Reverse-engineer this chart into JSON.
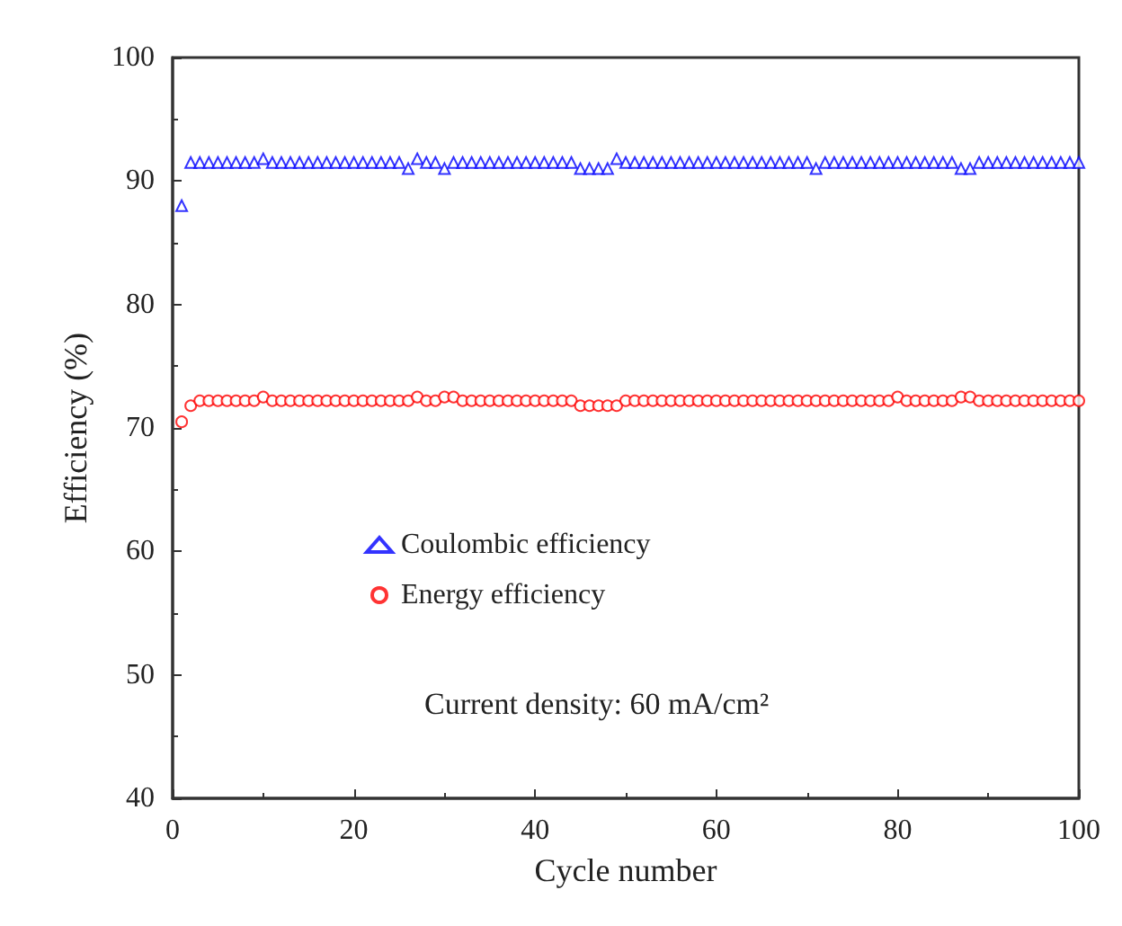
{
  "chart_data": {
    "type": "scatter",
    "xlabel": "Cycle number",
    "ylabel": "Efficiency (%)",
    "x": [
      1,
      2,
      3,
      4,
      5,
      6,
      7,
      8,
      9,
      10,
      11,
      12,
      13,
      14,
      15,
      16,
      17,
      18,
      19,
      20,
      21,
      22,
      23,
      24,
      25,
      26,
      27,
      28,
      29,
      30,
      31,
      32,
      33,
      34,
      35,
      36,
      37,
      38,
      39,
      40,
      41,
      42,
      43,
      44,
      45,
      46,
      47,
      48,
      49,
      50,
      51,
      52,
      53,
      54,
      55,
      56,
      57,
      58,
      59,
      60,
      61,
      62,
      63,
      64,
      65,
      66,
      67,
      68,
      69,
      70,
      71,
      72,
      73,
      74,
      75,
      76,
      77,
      78,
      79,
      80,
      81,
      82,
      83,
      84,
      85,
      86,
      87,
      88,
      89,
      90,
      91,
      92,
      93,
      94,
      95,
      96,
      97,
      98,
      99,
      100
    ],
    "series": [
      {
        "name": "Coulombic efficiency",
        "color": "#0000ff",
        "marker": "triangle",
        "values": [
          88,
          91.5,
          91.5,
          91.5,
          91.5,
          91.5,
          91.5,
          91.5,
          91.5,
          91.8,
          91.5,
          91.5,
          91.5,
          91.5,
          91.5,
          91.5,
          91.5,
          91.5,
          91.5,
          91.5,
          91.5,
          91.5,
          91.5,
          91.5,
          91.5,
          91.0,
          91.8,
          91.5,
          91.5,
          91.0,
          91.5,
          91.5,
          91.5,
          91.5,
          91.5,
          91.5,
          91.5,
          91.5,
          91.5,
          91.5,
          91.5,
          91.5,
          91.5,
          91.5,
          91.0,
          91.0,
          91.0,
          91.0,
          91.8,
          91.5,
          91.5,
          91.5,
          91.5,
          91.5,
          91.5,
          91.5,
          91.5,
          91.5,
          91.5,
          91.5,
          91.5,
          91.5,
          91.5,
          91.5,
          91.5,
          91.5,
          91.5,
          91.5,
          91.5,
          91.5,
          91.0,
          91.5,
          91.5,
          91.5,
          91.5,
          91.5,
          91.5,
          91.5,
          91.5,
          91.5,
          91.5,
          91.5,
          91.5,
          91.5,
          91.5,
          91.5,
          91.0,
          91.0,
          91.5,
          91.5,
          91.5,
          91.5,
          91.5,
          91.5,
          91.5,
          91.5,
          91.5,
          91.5,
          91.5,
          91.5
        ]
      },
      {
        "name": "Energy efficiency",
        "color": "#ff0000",
        "marker": "circle",
        "values": [
          70.5,
          71.8,
          72.2,
          72.2,
          72.2,
          72.2,
          72.2,
          72.2,
          72.2,
          72.5,
          72.2,
          72.2,
          72.2,
          72.2,
          72.2,
          72.2,
          72.2,
          72.2,
          72.2,
          72.2,
          72.2,
          72.2,
          72.2,
          72.2,
          72.2,
          72.2,
          72.5,
          72.2,
          72.2,
          72.5,
          72.5,
          72.2,
          72.2,
          72.2,
          72.2,
          72.2,
          72.2,
          72.2,
          72.2,
          72.2,
          72.2,
          72.2,
          72.2,
          72.2,
          71.8,
          71.8,
          71.8,
          71.8,
          71.8,
          72.2,
          72.2,
          72.2,
          72.2,
          72.2,
          72.2,
          72.2,
          72.2,
          72.2,
          72.2,
          72.2,
          72.2,
          72.2,
          72.2,
          72.2,
          72.2,
          72.2,
          72.2,
          72.2,
          72.2,
          72.2,
          72.2,
          72.2,
          72.2,
          72.2,
          72.2,
          72.2,
          72.2,
          72.2,
          72.2,
          72.5,
          72.2,
          72.2,
          72.2,
          72.2,
          72.2,
          72.2,
          72.5,
          72.5,
          72.2,
          72.2,
          72.2,
          72.2,
          72.2,
          72.2,
          72.2,
          72.2,
          72.2,
          72.2,
          72.2,
          72.2
        ]
      }
    ],
    "xlim": [
      0,
      100
    ],
    "xticks": [
      0,
      20,
      40,
      60,
      80,
      100
    ],
    "ylim": [
      40,
      100
    ],
    "yticks": [
      40,
      50,
      60,
      70,
      80,
      90,
      100
    ],
    "legend": "left",
    "annotations": [
      "Current density: 60 mA/cm²"
    ]
  }
}
